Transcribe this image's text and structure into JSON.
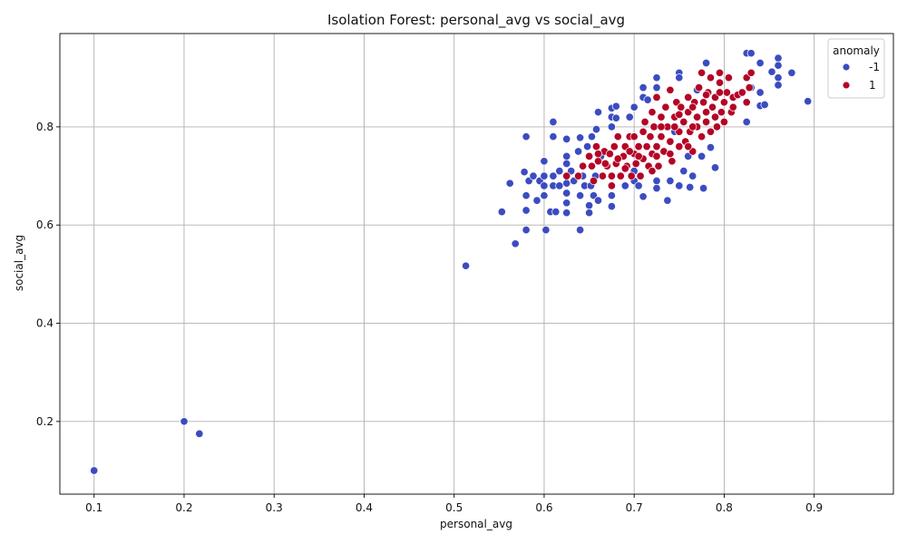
{
  "chart_data": {
    "type": "scatter",
    "title": "Isolation Forest: personal_avg vs social_avg",
    "xlabel": "personal_avg",
    "ylabel": "social_avg",
    "xlim": [
      0.062,
      0.988
    ],
    "ylim": [
      0.052,
      0.99
    ],
    "xticks": [
      0.1,
      0.2,
      0.3,
      0.4,
      0.5,
      0.6,
      0.7,
      0.8,
      0.9
    ],
    "yticks": [
      0.2,
      0.4,
      0.6,
      0.8
    ],
    "xtick_labels": [
      "0.1",
      "0.2",
      "0.3",
      "0.4",
      "0.5",
      "0.6",
      "0.7",
      "0.8",
      "0.9"
    ],
    "ytick_labels": [
      "0.2",
      "0.4",
      "0.6",
      "0.8"
    ],
    "grid": true,
    "legend": {
      "title": "anomaly",
      "placement": "top-right",
      "entries": [
        {
          "label": "-1",
          "color": "#3b4cc0"
        },
        {
          "label": "1",
          "color": "#b40426"
        }
      ]
    },
    "series": [
      {
        "name": "-1",
        "color": "#3b4cc0",
        "points": [
          [
            0.1,
            0.1
          ],
          [
            0.2,
            0.2
          ],
          [
            0.217,
            0.175
          ],
          [
            0.513,
            0.517
          ],
          [
            0.553,
            0.627
          ],
          [
            0.562,
            0.685
          ],
          [
            0.568,
            0.562
          ],
          [
            0.578,
            0.708
          ],
          [
            0.58,
            0.78
          ],
          [
            0.58,
            0.66
          ],
          [
            0.58,
            0.63
          ],
          [
            0.58,
            0.59
          ],
          [
            0.583,
            0.69
          ],
          [
            0.588,
            0.7
          ],
          [
            0.592,
            0.65
          ],
          [
            0.595,
            0.69
          ],
          [
            0.6,
            0.73
          ],
          [
            0.6,
            0.7
          ],
          [
            0.6,
            0.68
          ],
          [
            0.6,
            0.66
          ],
          [
            0.602,
            0.59
          ],
          [
            0.607,
            0.627
          ],
          [
            0.61,
            0.81
          ],
          [
            0.61,
            0.78
          ],
          [
            0.61,
            0.7
          ],
          [
            0.61,
            0.68
          ],
          [
            0.613,
            0.627
          ],
          [
            0.617,
            0.68
          ],
          [
            0.617,
            0.71
          ],
          [
            0.625,
            0.775
          ],
          [
            0.625,
            0.74
          ],
          [
            0.625,
            0.725
          ],
          [
            0.625,
            0.685
          ],
          [
            0.625,
            0.665
          ],
          [
            0.625,
            0.645
          ],
          [
            0.625,
            0.625
          ],
          [
            0.63,
            0.71
          ],
          [
            0.633,
            0.69
          ],
          [
            0.638,
            0.75
          ],
          [
            0.64,
            0.778
          ],
          [
            0.64,
            0.66
          ],
          [
            0.64,
            0.59
          ],
          [
            0.643,
            0.7
          ],
          [
            0.645,
            0.68
          ],
          [
            0.648,
            0.76
          ],
          [
            0.65,
            0.64
          ],
          [
            0.65,
            0.625
          ],
          [
            0.652,
            0.68
          ],
          [
            0.653,
            0.78
          ],
          [
            0.655,
            0.66
          ],
          [
            0.657,
            0.7
          ],
          [
            0.658,
            0.795
          ],
          [
            0.66,
            0.83
          ],
          [
            0.66,
            0.65
          ],
          [
            0.663,
            0.74
          ],
          [
            0.675,
            0.838
          ],
          [
            0.675,
            0.82
          ],
          [
            0.675,
            0.8
          ],
          [
            0.675,
            0.66
          ],
          [
            0.675,
            0.638
          ],
          [
            0.68,
            0.842
          ],
          [
            0.68,
            0.818
          ],
          [
            0.69,
            0.68
          ],
          [
            0.695,
            0.82
          ],
          [
            0.7,
            0.84
          ],
          [
            0.7,
            0.71
          ],
          [
            0.7,
            0.69
          ],
          [
            0.705,
            0.68
          ],
          [
            0.71,
            0.88
          ],
          [
            0.71,
            0.86
          ],
          [
            0.71,
            0.658
          ],
          [
            0.715,
            0.855
          ],
          [
            0.725,
            0.9
          ],
          [
            0.725,
            0.88
          ],
          [
            0.725,
            0.69
          ],
          [
            0.725,
            0.675
          ],
          [
            0.737,
            0.65
          ],
          [
            0.74,
            0.69
          ],
          [
            0.745,
            0.79
          ],
          [
            0.75,
            0.91
          ],
          [
            0.75,
            0.9
          ],
          [
            0.75,
            0.68
          ],
          [
            0.755,
            0.71
          ],
          [
            0.76,
            0.74
          ],
          [
            0.762,
            0.677
          ],
          [
            0.765,
            0.7
          ],
          [
            0.77,
            0.875
          ],
          [
            0.775,
            0.74
          ],
          [
            0.777,
            0.675
          ],
          [
            0.78,
            0.93
          ],
          [
            0.785,
            0.758
          ],
          [
            0.79,
            0.717
          ],
          [
            0.825,
            0.95
          ],
          [
            0.825,
            0.81
          ],
          [
            0.83,
            0.95
          ],
          [
            0.83,
            0.88
          ],
          [
            0.84,
            0.93
          ],
          [
            0.84,
            0.87
          ],
          [
            0.84,
            0.843
          ],
          [
            0.845,
            0.845
          ],
          [
            0.853,
            0.912
          ],
          [
            0.86,
            0.94
          ],
          [
            0.86,
            0.925
          ],
          [
            0.86,
            0.9
          ],
          [
            0.86,
            0.885
          ],
          [
            0.875,
            0.91
          ],
          [
            0.893,
            0.852
          ]
        ]
      },
      {
        "name": "1",
        "color": "#b40426",
        "points": [
          [
            0.625,
            0.7
          ],
          [
            0.638,
            0.7
          ],
          [
            0.643,
            0.72
          ],
          [
            0.65,
            0.74
          ],
          [
            0.653,
            0.72
          ],
          [
            0.655,
            0.69
          ],
          [
            0.658,
            0.76
          ],
          [
            0.66,
            0.73
          ],
          [
            0.665,
            0.7
          ],
          [
            0.667,
            0.75
          ],
          [
            0.67,
            0.72
          ],
          [
            0.673,
            0.745
          ],
          [
            0.675,
            0.7
          ],
          [
            0.675,
            0.68
          ],
          [
            0.678,
            0.76
          ],
          [
            0.68,
            0.725
          ],
          [
            0.682,
            0.78
          ],
          [
            0.685,
            0.7
          ],
          [
            0.688,
            0.74
          ],
          [
            0.69,
            0.76
          ],
          [
            0.692,
            0.72
          ],
          [
            0.695,
            0.78
          ],
          [
            0.697,
            0.7
          ],
          [
            0.7,
            0.745
          ],
          [
            0.7,
            0.78
          ],
          [
            0.702,
            0.725
          ],
          [
            0.705,
            0.76
          ],
          [
            0.707,
            0.7
          ],
          [
            0.71,
            0.79
          ],
          [
            0.71,
            0.735
          ],
          [
            0.712,
            0.81
          ],
          [
            0.714,
            0.76
          ],
          [
            0.716,
            0.72
          ],
          [
            0.718,
            0.78
          ],
          [
            0.72,
            0.83
          ],
          [
            0.72,
            0.745
          ],
          [
            0.722,
            0.8
          ],
          [
            0.725,
            0.76
          ],
          [
            0.725,
            0.86
          ],
          [
            0.727,
            0.72
          ],
          [
            0.73,
            0.82
          ],
          [
            0.73,
            0.78
          ],
          [
            0.733,
            0.75
          ],
          [
            0.735,
            0.84
          ],
          [
            0.737,
            0.8
          ],
          [
            0.74,
            0.875
          ],
          [
            0.74,
            0.77
          ],
          [
            0.742,
            0.73
          ],
          [
            0.745,
            0.82
          ],
          [
            0.747,
            0.85
          ],
          [
            0.75,
            0.79
          ],
          [
            0.75,
            0.76
          ],
          [
            0.752,
            0.84
          ],
          [
            0.755,
            0.81
          ],
          [
            0.757,
            0.77
          ],
          [
            0.76,
            0.86
          ],
          [
            0.76,
            0.83
          ],
          [
            0.762,
            0.79
          ],
          [
            0.765,
            0.75
          ],
          [
            0.767,
            0.85
          ],
          [
            0.77,
            0.82
          ],
          [
            0.77,
            0.8
          ],
          [
            0.772,
            0.88
          ],
          [
            0.775,
            0.91
          ],
          [
            0.775,
            0.78
          ],
          [
            0.777,
            0.85
          ],
          [
            0.78,
            0.83
          ],
          [
            0.78,
            0.81
          ],
          [
            0.782,
            0.87
          ],
          [
            0.785,
            0.9
          ],
          [
            0.785,
            0.79
          ],
          [
            0.787,
            0.84
          ],
          [
            0.79,
            0.82
          ],
          [
            0.79,
            0.86
          ],
          [
            0.792,
            0.8
          ],
          [
            0.795,
            0.89
          ],
          [
            0.795,
            0.91
          ],
          [
            0.797,
            0.83
          ],
          [
            0.8,
            0.85
          ],
          [
            0.8,
            0.81
          ],
          [
            0.803,
            0.87
          ],
          [
            0.805,
            0.9
          ],
          [
            0.808,
            0.83
          ],
          [
            0.81,
            0.86
          ],
          [
            0.815,
            0.865
          ],
          [
            0.82,
            0.87
          ],
          [
            0.825,
            0.9
          ],
          [
            0.825,
            0.85
          ],
          [
            0.828,
            0.88
          ],
          [
            0.83,
            0.91
          ],
          [
            0.76,
            0.76
          ],
          [
            0.74,
            0.745
          ],
          [
            0.72,
            0.71
          ],
          [
            0.705,
            0.74
          ],
          [
            0.69,
            0.715
          ],
          [
            0.682,
            0.735
          ],
          [
            0.668,
            0.725
          ],
          [
            0.66,
            0.745
          ],
          [
            0.695,
            0.75
          ],
          [
            0.73,
            0.8
          ],
          [
            0.75,
            0.825
          ],
          [
            0.765,
            0.84
          ],
          [
            0.78,
            0.865
          ],
          [
            0.795,
            0.87
          ],
          [
            0.81,
            0.84
          ],
          [
            0.765,
            0.8
          ],
          [
            0.745,
            0.8
          ],
          [
            0.725,
            0.74
          ]
        ]
      }
    ]
  }
}
